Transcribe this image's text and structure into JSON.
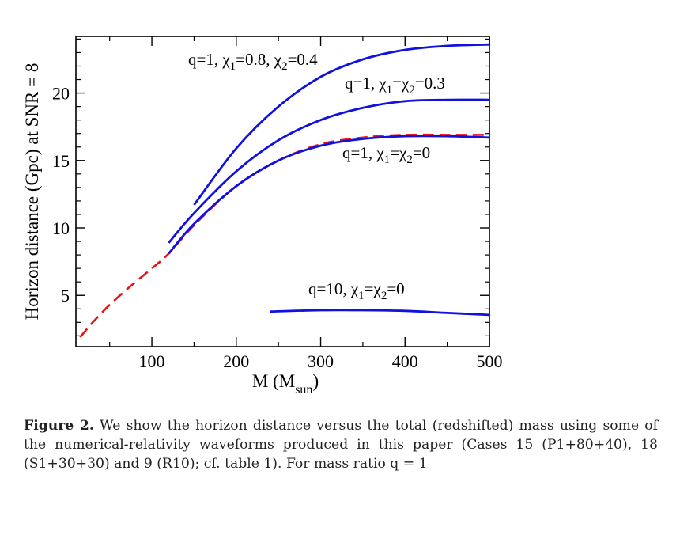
{
  "chart_data": {
    "type": "line",
    "xlabel": "M (M",
    "xlabel_sub": "sun",
    "xlabel_close": ")",
    "ylabel": "Horizon distance (Gpc) at SNR = 8",
    "xlim": [
      10,
      500
    ],
    "ylim": [
      1.2,
      24.2
    ],
    "x_ticks": [
      100,
      200,
      300,
      400,
      500
    ],
    "y_ticks": [
      5,
      10,
      15,
      20
    ],
    "grid": false,
    "series": [
      {
        "label_parts": [
          "q=1, χ",
          "1",
          "=0.8, χ",
          "2",
          "=0.4"
        ],
        "color": "#1010e0",
        "dash": false,
        "points": [
          [
            150,
            11.7
          ],
          [
            200,
            15.9
          ],
          [
            250,
            19.0
          ],
          [
            300,
            21.2
          ],
          [
            350,
            22.5
          ],
          [
            400,
            23.2
          ],
          [
            450,
            23.5
          ],
          [
            500,
            23.6
          ]
        ]
      },
      {
        "label_parts": [
          "q=1, χ",
          "1",
          "=χ",
          "2",
          "=0.3"
        ],
        "color": "#1010e0",
        "dash": false,
        "points": [
          [
            120,
            8.9
          ],
          [
            150,
            11.1
          ],
          [
            200,
            14.2
          ],
          [
            250,
            16.5
          ],
          [
            300,
            18.0
          ],
          [
            350,
            18.9
          ],
          [
            400,
            19.4
          ],
          [
            450,
            19.5
          ],
          [
            500,
            19.5
          ]
        ]
      },
      {
        "label_parts": [
          "q=1, χ",
          "1",
          "=χ",
          "2",
          "=0"
        ],
        "color": "#1010e0",
        "dash": false,
        "points": [
          [
            120,
            8.1
          ],
          [
            150,
            10.3
          ],
          [
            200,
            13.1
          ],
          [
            250,
            15.0
          ],
          [
            300,
            16.1
          ],
          [
            350,
            16.6
          ],
          [
            400,
            16.8
          ],
          [
            450,
            16.8
          ],
          [
            500,
            16.7
          ]
        ]
      },
      {
        "label_parts": [],
        "color": "#ee1010",
        "dash": true,
        "points": [
          [
            15,
            1.9
          ],
          [
            30,
            3.0
          ],
          [
            50,
            4.3
          ],
          [
            75,
            5.7
          ],
          [
            100,
            7.0
          ],
          [
            120,
            8.1
          ],
          [
            150,
            10.2
          ],
          [
            200,
            13.1
          ],
          [
            250,
            15.0
          ],
          [
            300,
            16.2
          ],
          [
            350,
            16.7
          ],
          [
            400,
            16.9
          ],
          [
            450,
            16.9
          ],
          [
            500,
            16.9
          ]
        ]
      },
      {
        "label_parts": [
          "q=10, χ",
          "1",
          "=χ",
          "2",
          "=0"
        ],
        "color": "#1010e0",
        "dash": false,
        "points": [
          [
            240,
            3.8
          ],
          [
            300,
            3.9
          ],
          [
            350,
            3.9
          ],
          [
            400,
            3.85
          ],
          [
            450,
            3.7
          ],
          [
            500,
            3.55
          ]
        ]
      }
    ]
  },
  "caption": {
    "label": "Figure 2.",
    "text": "We show the horizon distance versus the total (redshifted) mass using some of the numerical-relativity waveforms produced in this paper (Cases 15 (P1+80+40), 18 (S1+30+30) and 9 (R10); cf. table 1).  For mass ratio q = 1"
  }
}
